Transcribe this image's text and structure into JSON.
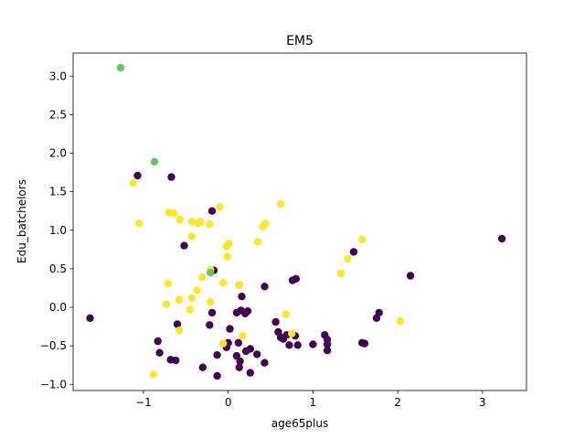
{
  "chart_data": {
    "type": "scatter",
    "title": "EM5",
    "xlabel": "age65plus",
    "ylabel": "Edu_batchelors",
    "xlim": [
      -1.83,
      3.52
    ],
    "ylim": [
      -1.08,
      3.3
    ],
    "xticks": [
      -1,
      0,
      1,
      2,
      3
    ],
    "xtick_labels": [
      "−1",
      "0",
      "1",
      "2",
      "3"
    ],
    "yticks": [
      -1.0,
      -0.5,
      0.0,
      0.5,
      1.0,
      1.5,
      2.0,
      2.5,
      3.0
    ],
    "ytick_labels": [
      "−1.0",
      "−0.5",
      "0.0",
      "0.5",
      "1.0",
      "1.5",
      "2.0",
      "2.5",
      "3.0"
    ],
    "grid": false,
    "colors": {
      "purple": "#440154",
      "yellow": "#fde725",
      "green": "#5ec962"
    },
    "series": [
      {
        "color": "#440154",
        "points": [
          [
            -1.63,
            -0.14
          ],
          [
            -1.07,
            1.71
          ],
          [
            -0.67,
            1.69
          ],
          [
            -0.19,
            1.25
          ],
          [
            -0.52,
            0.8
          ],
          [
            -0.83,
            -0.44
          ],
          [
            -0.81,
            -0.59
          ],
          [
            -0.68,
            -0.68
          ],
          [
            -0.62,
            -0.69
          ],
          [
            -0.6,
            -0.22
          ],
          [
            -0.22,
            -0.23
          ],
          [
            -0.13,
            -0.62
          ],
          [
            -0.3,
            -0.78
          ],
          [
            -0.13,
            -0.89
          ],
          [
            -0.02,
            -0.52
          ],
          [
            0.0,
            -0.46
          ],
          [
            0.02,
            -0.28
          ],
          [
            -0.19,
            -0.07
          ],
          [
            -0.17,
            0.48
          ],
          [
            0.1,
            -0.63
          ],
          [
            0.13,
            -0.78
          ],
          [
            0.14,
            -0.7
          ],
          [
            0.12,
            -0.46
          ],
          [
            0.1,
            -0.07
          ],
          [
            0.15,
            -0.04
          ],
          [
            0.13,
            0.29
          ],
          [
            0.16,
            0.14
          ],
          [
            0.2,
            -0.08
          ],
          [
            0.23,
            -0.05
          ],
          [
            0.21,
            -0.57
          ],
          [
            0.26,
            -0.54
          ],
          [
            0.26,
            -0.85
          ],
          [
            0.34,
            -0.61
          ],
          [
            0.43,
            -0.72
          ],
          [
            0.43,
            0.27
          ],
          [
            0.56,
            -0.19
          ],
          [
            0.59,
            -0.32
          ],
          [
            0.62,
            -0.39
          ],
          [
            0.65,
            -0.41
          ],
          [
            0.69,
            -0.36
          ],
          [
            0.72,
            -0.49
          ],
          [
            0.79,
            -0.37
          ],
          [
            0.82,
            -0.49
          ],
          [
            0.76,
            0.35
          ],
          [
            0.8,
            0.37
          ],
          [
            1.0,
            -0.48
          ],
          [
            1.14,
            -0.36
          ],
          [
            1.17,
            -0.42
          ],
          [
            1.17,
            -0.48
          ],
          [
            1.17,
            -0.56
          ],
          [
            1.48,
            0.72
          ],
          [
            1.58,
            -0.46
          ],
          [
            1.61,
            -0.47
          ],
          [
            1.75,
            -0.14
          ],
          [
            1.78,
            -0.07
          ],
          [
            2.15,
            0.41
          ],
          [
            3.23,
            0.89
          ]
        ]
      },
      {
        "color": "#fde725",
        "points": [
          [
            -1.12,
            1.61
          ],
          [
            -1.05,
            1.09
          ],
          [
            -0.88,
            -0.87
          ],
          [
            -0.73,
            0.04
          ],
          [
            -0.71,
            0.31
          ],
          [
            -0.7,
            1.23
          ],
          [
            -0.64,
            1.22
          ],
          [
            -0.57,
            1.14
          ],
          [
            -0.58,
            0.1
          ],
          [
            -0.58,
            -0.3
          ],
          [
            -0.45,
            -0.03
          ],
          [
            -0.43,
            0.12
          ],
          [
            -0.43,
            0.92
          ],
          [
            -0.43,
            1.11
          ],
          [
            -0.36,
            1.09
          ],
          [
            -0.33,
            1.11
          ],
          [
            -0.37,
            0.22
          ],
          [
            -0.31,
            0.39
          ],
          [
            -0.22,
            1.08
          ],
          [
            -0.21,
            0.49
          ],
          [
            -0.21,
            0.07
          ],
          [
            -0.1,
            1.3
          ],
          [
            -0.06,
            -0.47
          ],
          [
            -0.06,
            0.32
          ],
          [
            -0.02,
            0.79
          ],
          [
            0.01,
            0.83
          ],
          [
            -0.01,
            0.66
          ],
          [
            0.13,
            0.29
          ],
          [
            0.17,
            -0.37
          ],
          [
            0.35,
            0.85
          ],
          [
            0.41,
            1.05
          ],
          [
            0.44,
            1.09
          ],
          [
            0.62,
            1.34
          ],
          [
            0.68,
            -0.09
          ],
          [
            0.75,
            -0.34
          ],
          [
            1.33,
            0.44
          ],
          [
            1.41,
            0.63
          ],
          [
            1.58,
            0.88
          ],
          [
            2.03,
            -0.18
          ]
        ]
      },
      {
        "color": "#5ec962",
        "points": [
          [
            -1.27,
            3.11
          ],
          [
            -0.87,
            1.89
          ],
          [
            -0.21,
            0.45
          ]
        ]
      }
    ]
  }
}
